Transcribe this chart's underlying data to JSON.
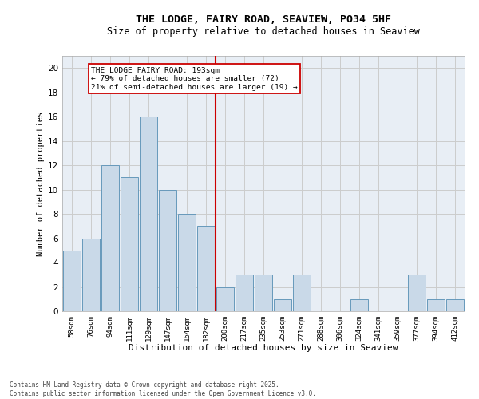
{
  "title": "THE LODGE, FAIRY ROAD, SEAVIEW, PO34 5HF",
  "subtitle": "Size of property relative to detached houses in Seaview",
  "xlabel": "Distribution of detached houses by size in Seaview",
  "ylabel": "Number of detached properties",
  "bar_labels": [
    "58sqm",
    "76sqm",
    "94sqm",
    "111sqm",
    "129sqm",
    "147sqm",
    "164sqm",
    "182sqm",
    "200sqm",
    "217sqm",
    "235sqm",
    "253sqm",
    "271sqm",
    "288sqm",
    "306sqm",
    "324sqm",
    "341sqm",
    "359sqm",
    "377sqm",
    "394sqm",
    "412sqm"
  ],
  "bar_values": [
    5,
    6,
    12,
    11,
    16,
    10,
    8,
    7,
    2,
    3,
    3,
    1,
    3,
    0,
    0,
    1,
    0,
    0,
    3,
    1,
    1
  ],
  "bar_color": "#c9d9e8",
  "bar_edge_color": "#6699bb",
  "vline_x": 7.5,
  "vline_color": "#cc0000",
  "annotation_line1": "THE LODGE FAIRY ROAD: 193sqm",
  "annotation_line2": "← 79% of detached houses are smaller (72)",
  "annotation_line3": "21% of semi-detached houses are larger (19) →",
  "annotation_box_color": "#ffffff",
  "annotation_box_edge": "#cc0000",
  "ylim": [
    0,
    21
  ],
  "yticks": [
    0,
    2,
    4,
    6,
    8,
    10,
    12,
    14,
    16,
    18,
    20
  ],
  "grid_color": "#cccccc",
  "bg_color": "#e8eef5",
  "footer_line1": "Contains HM Land Registry data © Crown copyright and database right 2025.",
  "footer_line2": "Contains public sector information licensed under the Open Government Licence v3.0."
}
